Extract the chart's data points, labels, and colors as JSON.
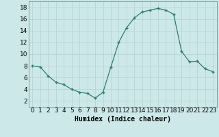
{
  "x": [
    0,
    1,
    2,
    3,
    4,
    5,
    6,
    7,
    8,
    9,
    10,
    11,
    12,
    13,
    14,
    15,
    16,
    17,
    18,
    19,
    20,
    21,
    22,
    23
  ],
  "y": [
    8,
    7.8,
    6.3,
    5.2,
    4.8,
    4.0,
    3.5,
    3.3,
    2.5,
    3.5,
    7.8,
    12.0,
    14.5,
    16.2,
    17.2,
    17.5,
    17.8,
    17.5,
    16.8,
    10.5,
    8.7,
    8.8,
    7.5,
    7.0
  ],
  "xlabel": "Humidex (Indice chaleur)",
  "xlim": [
    -0.5,
    23.5
  ],
  "ylim": [
    1,
    19
  ],
  "yticks": [
    2,
    4,
    6,
    8,
    10,
    12,
    14,
    16,
    18
  ],
  "xticks": [
    0,
    1,
    2,
    3,
    4,
    5,
    6,
    7,
    8,
    9,
    10,
    11,
    12,
    13,
    14,
    15,
    16,
    17,
    18,
    19,
    20,
    21,
    22,
    23
  ],
  "line_color": "#2e7d6e",
  "marker": "+",
  "bg_color": "#cce8e8",
  "grid_color": "#b8d4d4",
  "xlabel_fontsize": 7,
  "tick_fontsize": 6.5
}
